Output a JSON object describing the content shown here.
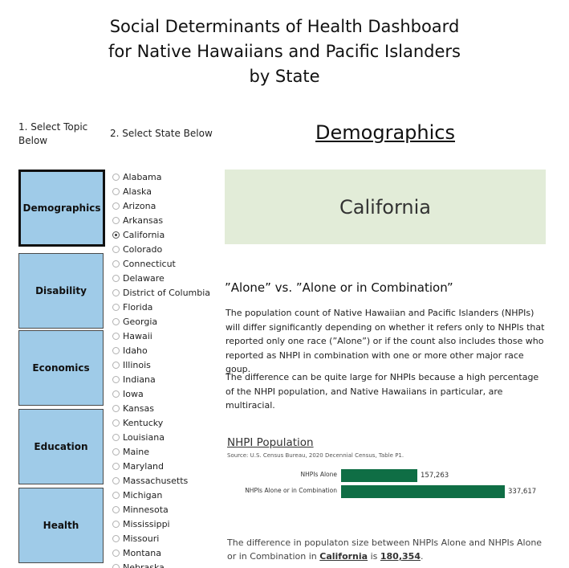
{
  "title_lines": [
    "Social Determinants of Health Dashboard",
    "for Native Hawaiians and Pacific Islanders",
    "by State"
  ],
  "step1_label": "1. Select Topic Below",
  "step1_lines": [
    "1. Select Topic",
    "Below"
  ],
  "step2_label": "2. Select State Below",
  "section_heading": "Demographics",
  "topics": [
    "Demographics",
    "Disability",
    "Economics",
    "Education",
    "Health"
  ],
  "selected_topic": "Demographics",
  "states": [
    "Alabama",
    "Alaska",
    "Arizona",
    "Arkansas",
    "California",
    "Colorado",
    "Connecticut",
    "Delaware",
    "District of Columbia",
    "Florida",
    "Georgia",
    "Hawaii",
    "Idaho",
    "Illinois",
    "Indiana",
    "Iowa",
    "Kansas",
    "Kentucky",
    "Louisiana",
    "Maine",
    "Maryland",
    "Massachusetts",
    "Michigan",
    "Minnesota",
    "Mississippi",
    "Missouri",
    "Montana",
    "Nebraska"
  ],
  "selected_state": "California",
  "state_banner": "California",
  "alone_heading": "”Alone” vs. ”Alone or in Combination”",
  "paragraph1": "The population count of Native Hawaiian and Pacific Islanders (NHPIs) will differ significantly depending on whether it refers only to NHPIs that reported only one race (”Alone”) or if the count also includes those who reported as NHPI in combination with one or more other major race goup.",
  "paragraph2": "The difference can be quite large for NHPIs because a high percentage of the NHPI population, and Native Hawaiians in particular, are multiracial.",
  "chart_data": {
    "type": "bar",
    "title": "NHPI Population",
    "subtitle": "Source: U.S. Census Bureau, 2020 Decennial Census, Table P1.",
    "categories": [
      "NHPIs Alone",
      "NHPIs Alone or in Combination"
    ],
    "values": [
      157263,
      337617
    ],
    "value_labels": [
      "157,263",
      "337,617"
    ],
    "orientation": "horizontal",
    "color": "#0f6e45"
  },
  "footer": {
    "text_before": "The difference in populaton size between NHPIs Alone and NHPIs Alone or in Combination in ",
    "state": "California",
    "text_middle": " is ",
    "difference": "180,354",
    "text_after": "."
  },
  "colors": {
    "topic_button": "#9fcbe8",
    "state_banner": "#e2ecd8",
    "bar": "#0f6e45"
  }
}
